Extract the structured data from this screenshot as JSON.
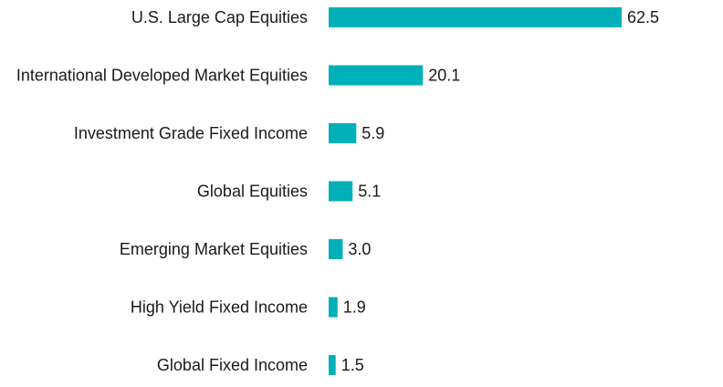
{
  "chart_data": {
    "type": "bar",
    "orientation": "horizontal",
    "title": "",
    "xlabel": "",
    "ylabel": "",
    "categories": [
      "U.S. Large Cap Equities",
      "International Developed Market Equities",
      "Investment Grade Fixed Income",
      "Global Equities",
      "Emerging Market Equities",
      "High Yield Fixed Income",
      "Global Fixed Income"
    ],
    "values": [
      62.5,
      20.1,
      5.9,
      5.1,
      3.0,
      1.9,
      1.5
    ],
    "value_labels": [
      "62.5",
      "20.1",
      "5.9",
      "5.1",
      "3.0",
      "1.9",
      "1.5"
    ],
    "xlim": [
      0,
      62.5
    ],
    "grid": false,
    "legend": "none",
    "bar_color": "#00B0B9"
  }
}
